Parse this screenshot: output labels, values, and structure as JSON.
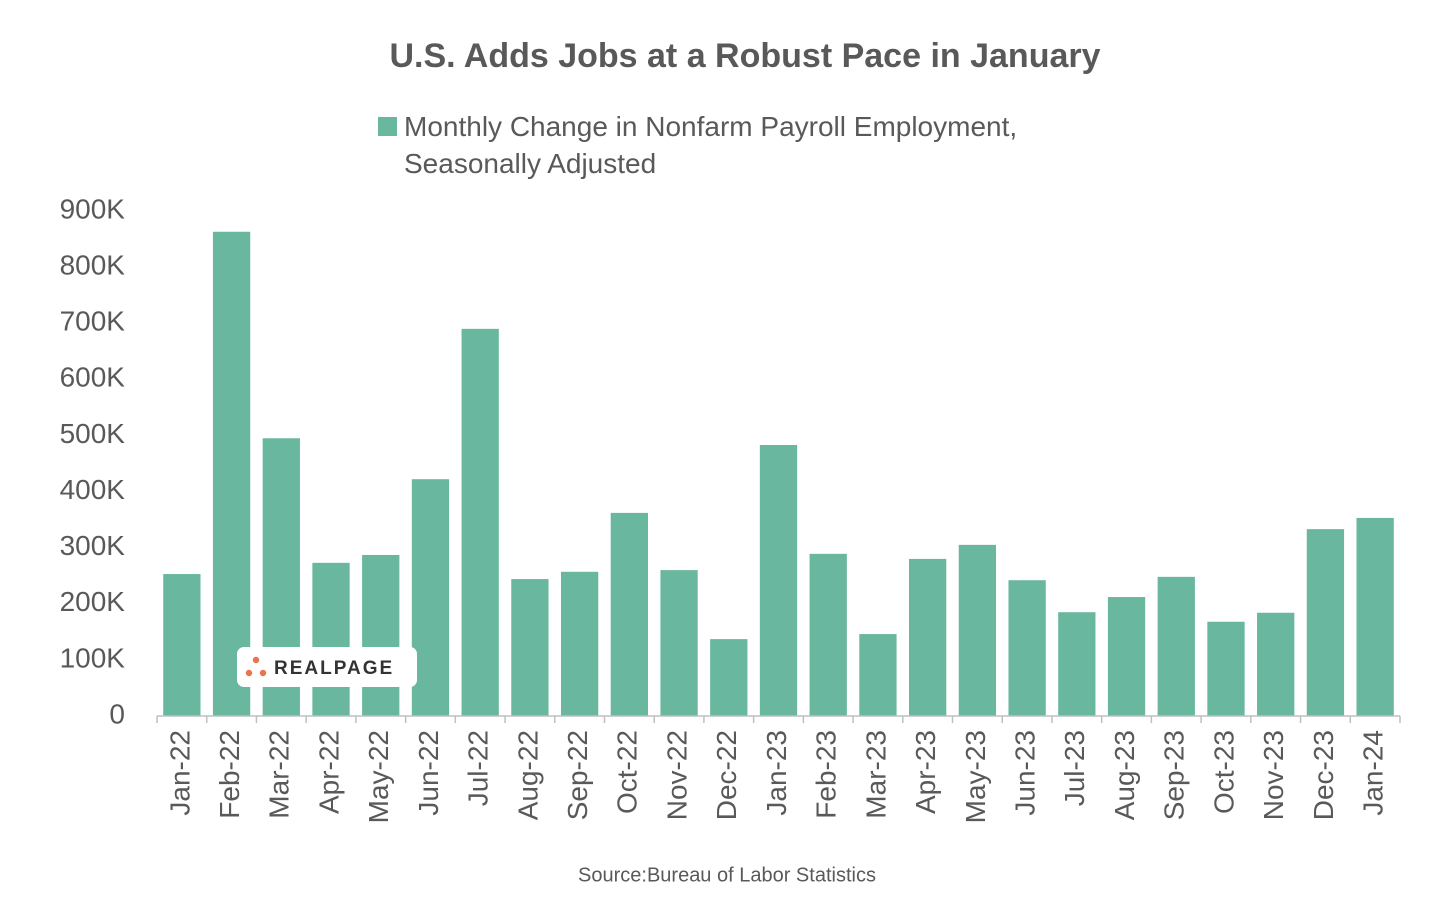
{
  "chart_data": {
    "type": "bar",
    "title": "U.S. Adds Jobs at a Robust Pace in January",
    "series": [
      {
        "name": "Monthly Change in Nonfarm Payroll Employment, Seasonally Adjusted",
        "color": "#69b79e",
        "values": [
          253,
          863,
          495,
          273,
          287,
          422,
          690,
          244,
          257,
          362,
          260,
          137,
          483,
          289,
          146,
          280,
          305,
          242,
          185,
          212,
          248,
          168,
          184,
          333,
          353
        ]
      }
    ],
    "categories": [
      "Jan-22",
      "Feb-22",
      "Mar-22",
      "Apr-22",
      "May-22",
      "Jun-22",
      "Jul-22",
      "Aug-22",
      "Sep-22",
      "Oct-22",
      "Nov-22",
      "Dec-22",
      "Jan-23",
      "Feb-23",
      "Mar-23",
      "Apr-23",
      "May-23",
      "Jun-23",
      "Jul-23",
      "Aug-23",
      "Sep-23",
      "Oct-23",
      "Nov-23",
      "Dec-23",
      "Jan-24"
    ],
    "ylim": [
      0,
      900
    ],
    "yticks": [
      0,
      {
        "value": 100,
        "label": "100K"
      },
      {
        "value": 200,
        "label": "200K"
      },
      {
        "value": 300,
        "label": "300K"
      },
      {
        "value": 400,
        "label": "400K"
      },
      {
        "value": 500,
        "label": "500K"
      },
      {
        "value": 600,
        "label": "600K"
      },
      {
        "value": 700,
        "label": "700K"
      },
      {
        "value": 800,
        "label": "800K"
      },
      {
        "value": 900,
        "label": "900K"
      }
    ],
    "grid": false,
    "legend": "top",
    "source": "Source:Bureau of Labor Statistics",
    "watermark": "REALPAGE"
  }
}
